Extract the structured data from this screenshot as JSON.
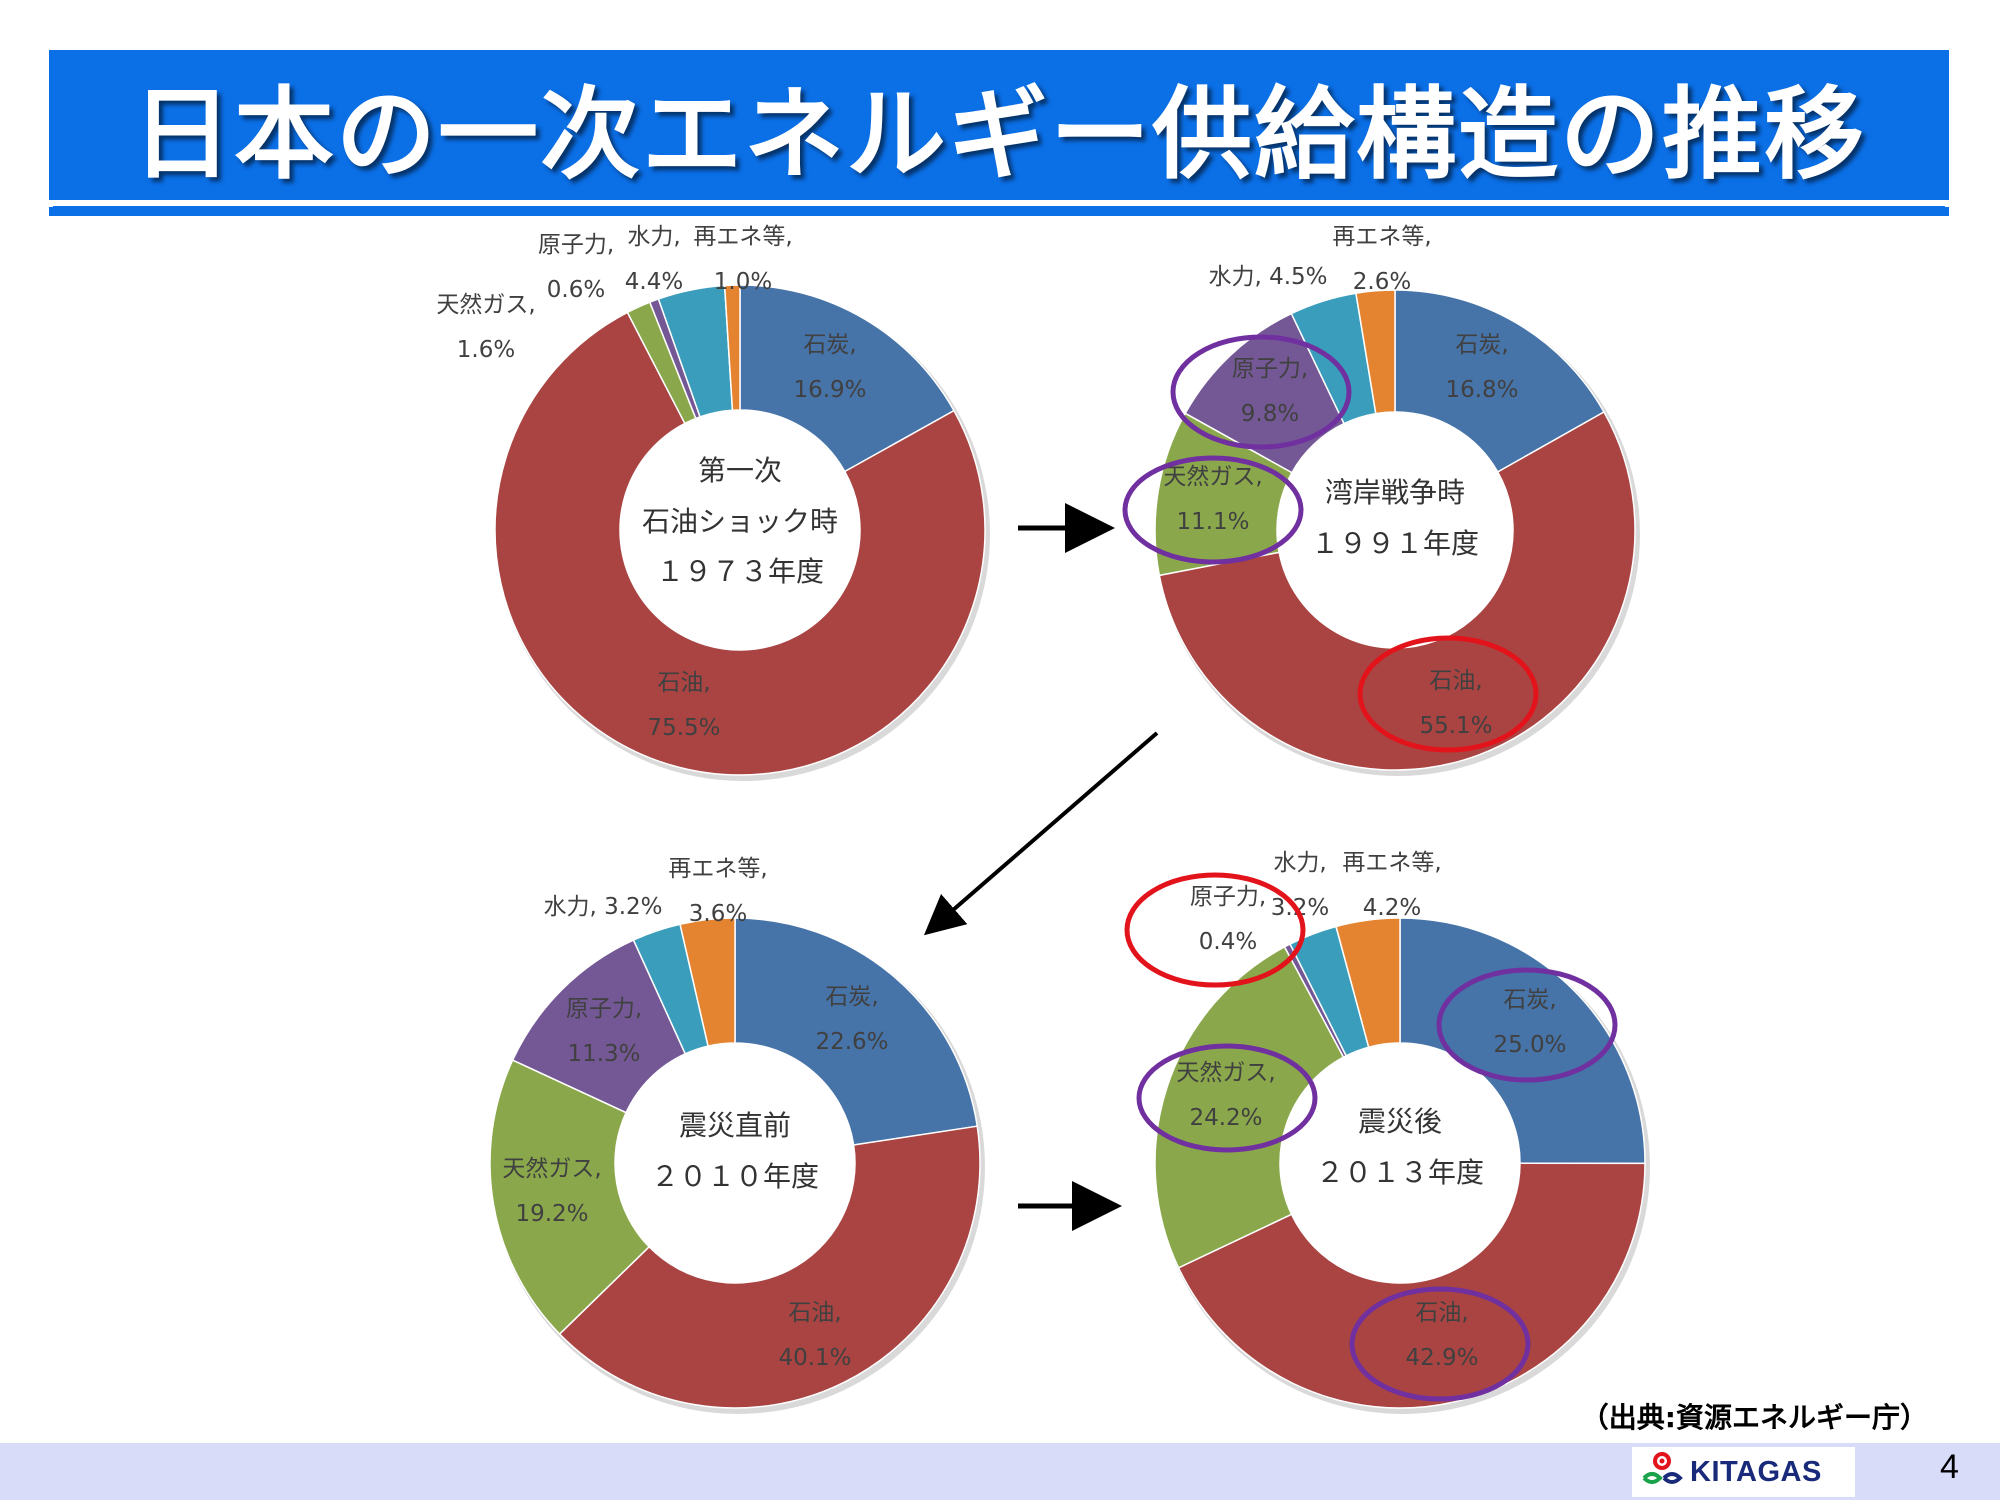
{
  "title": "日本の一次エネルギー供給構造の推移",
  "source_note": "（出典:資源エネルギー庁）",
  "footer": {
    "logo_text": "KITAGAS",
    "page_number": "4"
  },
  "colors": {
    "石炭": "#4673a8",
    "石油": "#a94442",
    "天然ガス": "#8aa84b",
    "原子力": "#745895",
    "水力": "#3a9dbb",
    "再エネ等": "#e58430",
    "title_bar": "#0b6fe6",
    "highlight_red": "#e3131b",
    "highlight_purple": "#7030a0"
  },
  "chart_data": [
    {
      "type": "pie",
      "center_lines": [
        "第一次",
        "石油ショック時",
        "１９７３年度"
      ],
      "categories": [
        "石炭",
        "石油",
        "天然ガス",
        "原子力",
        "水力",
        "再エネ等"
      ],
      "values": [
        16.9,
        75.5,
        1.6,
        0.6,
        4.4,
        1.0
      ],
      "labels": [
        [
          "石炭,",
          "16.9%"
        ],
        [
          "石油,",
          "75.5%"
        ],
        [
          "天然ガス,",
          "1.6%"
        ],
        [
          "原子力,",
          "0.6%"
        ],
        [
          "水力,",
          "4.4%"
        ],
        [
          "再エネ等,",
          "1.0%"
        ]
      ],
      "highlights": []
    },
    {
      "type": "pie",
      "center_lines": [
        "湾岸戦争時",
        "１９９１年度"
      ],
      "categories": [
        "石炭",
        "石油",
        "天然ガス",
        "原子力",
        "水力",
        "再エネ等"
      ],
      "values": [
        16.8,
        55.1,
        11.1,
        9.8,
        4.5,
        2.6
      ],
      "labels": [
        [
          "石炭,",
          "16.8%"
        ],
        [
          "石油,",
          "55.1%"
        ],
        [
          "天然ガス,",
          "11.1%"
        ],
        [
          "原子力,",
          "9.8%"
        ],
        [
          "水力, 4.5%"
        ],
        [
          "再エネ等,",
          "2.6%"
        ]
      ],
      "highlights": [
        {
          "category": "石油",
          "color": "red"
        },
        {
          "category": "天然ガス",
          "color": "purple"
        },
        {
          "category": "原子力",
          "color": "purple"
        }
      ]
    },
    {
      "type": "pie",
      "center_lines": [
        "震災直前",
        "２０１０年度"
      ],
      "categories": [
        "石炭",
        "石油",
        "天然ガス",
        "原子力",
        "水力",
        "再エネ等"
      ],
      "values": [
        22.6,
        40.1,
        19.2,
        11.3,
        3.2,
        3.6
      ],
      "labels": [
        [
          "石炭,",
          "22.6%"
        ],
        [
          "石油,",
          "40.1%"
        ],
        [
          "天然ガス,",
          "19.2%"
        ],
        [
          "原子力,",
          "11.3%"
        ],
        [
          "水力, 3.2%"
        ],
        [
          "再エネ等,",
          "3.6%"
        ]
      ],
      "highlights": []
    },
    {
      "type": "pie",
      "center_lines": [
        "震災後",
        "２０１３年度"
      ],
      "categories": [
        "石炭",
        "石油",
        "天然ガス",
        "原子力",
        "水力",
        "再エネ等"
      ],
      "values": [
        25.0,
        42.9,
        24.2,
        0.4,
        3.2,
        4.2
      ],
      "labels": [
        [
          "石炭,",
          "25.0%"
        ],
        [
          "石油,",
          "42.9%"
        ],
        [
          "天然ガス,",
          "24.2%"
        ],
        [
          "原子力,",
          "0.4%"
        ],
        [
          "水力,",
          "3.2%"
        ],
        [
          "再エネ等,",
          "4.2%"
        ]
      ],
      "highlights": [
        {
          "category": "原子力",
          "color": "red"
        },
        {
          "category": "石炭",
          "color": "purple"
        },
        {
          "category": "天然ガス",
          "color": "purple"
        },
        {
          "category": "石油",
          "color": "purple"
        }
      ]
    }
  ]
}
